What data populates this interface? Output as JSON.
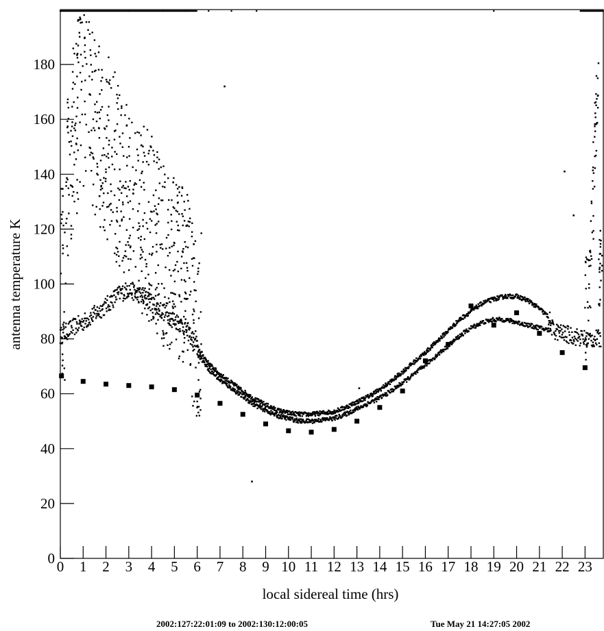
{
  "chart_data": {
    "type": "scatter",
    "xlabel": "local sidereal time (hrs)",
    "ylabel": "antenna temperature K",
    "xlim": [
      0,
      23.8
    ],
    "ylim": [
      0,
      200
    ],
    "x_ticks": [
      0,
      1,
      2,
      3,
      4,
      5,
      6,
      7,
      8,
      9,
      10,
      11,
      12,
      13,
      14,
      15,
      16,
      17,
      18,
      19,
      20,
      21,
      22,
      23
    ],
    "y_ticks": [
      0,
      20,
      40,
      60,
      80,
      100,
      120,
      140,
      160,
      180
    ],
    "grid": false,
    "series": [
      {
        "marker": "square-small",
        "upper_track": [
          [
            0.0,
            81
          ],
          [
            0.5,
            84
          ],
          [
            1.0,
            86
          ],
          [
            1.5,
            89
          ],
          [
            2.0,
            92
          ],
          [
            2.5,
            96
          ],
          [
            3.0,
            98
          ],
          [
            3.5,
            96
          ],
          [
            4.0,
            93
          ],
          [
            4.5,
            90
          ],
          [
            5.0,
            87
          ],
          [
            5.5,
            84
          ],
          [
            6.0,
            77
          ],
          [
            6.5,
            71
          ],
          [
            7.0,
            67
          ],
          [
            7.5,
            64
          ],
          [
            8.0,
            61
          ],
          [
            8.5,
            58
          ],
          [
            9.0,
            56
          ],
          [
            9.5,
            54
          ],
          [
            10.0,
            53
          ],
          [
            10.5,
            52.5
          ],
          [
            11.0,
            52.5
          ],
          [
            11.5,
            53
          ],
          [
            12.0,
            53.5
          ],
          [
            12.5,
            55
          ],
          [
            13.0,
            57
          ],
          [
            13.5,
            59
          ],
          [
            14.0,
            61.5
          ],
          [
            14.5,
            64.5
          ],
          [
            15.0,
            68
          ],
          [
            15.5,
            71.5
          ],
          [
            16.0,
            75
          ],
          [
            16.5,
            79
          ],
          [
            17.0,
            83
          ],
          [
            17.5,
            87
          ],
          [
            18.0,
            90
          ],
          [
            18.5,
            93
          ],
          [
            19.0,
            94.5
          ],
          [
            19.5,
            95.5
          ],
          [
            20.0,
            95.5
          ],
          [
            20.5,
            94
          ],
          [
            21.0,
            91
          ],
          [
            21.4,
            88
          ],
          [
            21.6,
            83
          ],
          [
            22.0,
            82
          ],
          [
            22.5,
            81
          ],
          [
            23.0,
            80
          ],
          [
            23.7,
            80
          ]
        ],
        "lower_track": [
          [
            6.0,
            75
          ],
          [
            6.5,
            69
          ],
          [
            7.0,
            65
          ],
          [
            7.5,
            62
          ],
          [
            8.0,
            59
          ],
          [
            8.5,
            56
          ],
          [
            9.0,
            54
          ],
          [
            9.5,
            52
          ],
          [
            10.0,
            51
          ],
          [
            10.5,
            50
          ],
          [
            11.0,
            50
          ],
          [
            11.5,
            50.5
          ],
          [
            12.0,
            51
          ],
          [
            12.5,
            52.5
          ],
          [
            13.0,
            54.5
          ],
          [
            13.5,
            56.5
          ],
          [
            14.0,
            58.5
          ],
          [
            14.5,
            61
          ],
          [
            15.0,
            64
          ],
          [
            15.5,
            67
          ],
          [
            16.0,
            70.5
          ],
          [
            16.5,
            74
          ],
          [
            17.0,
            77.5
          ],
          [
            17.5,
            81
          ],
          [
            18.0,
            84
          ],
          [
            18.5,
            86
          ],
          [
            19.0,
            87
          ],
          [
            19.5,
            87
          ],
          [
            20.0,
            86
          ],
          [
            20.5,
            85
          ],
          [
            21.0,
            84
          ],
          [
            21.5,
            83
          ]
        ],
        "scatter_band": [
          [
            0.2,
            120
          ],
          [
            0.5,
            150
          ],
          [
            1.0,
            170
          ],
          [
            1.5,
            160
          ],
          [
            2.0,
            150
          ],
          [
            2.5,
            140
          ],
          [
            3.0,
            130
          ],
          [
            3.5,
            125
          ],
          [
            4.0,
            120
          ],
          [
            4.5,
            110
          ],
          [
            5.0,
            105
          ],
          [
            5.5,
            100
          ],
          [
            6.0,
            85
          ],
          [
            23.1,
            90
          ],
          [
            23.3,
            120
          ],
          [
            23.5,
            160
          ],
          [
            23.6,
            180
          ]
        ],
        "saturated_x_ranges": [
          [
            0.0,
            3.0
          ],
          [
            3.0,
            6.0
          ],
          [
            22.8,
            23.8
          ]
        ]
      },
      {
        "marker": "square-large",
        "points": [
          [
            0.05,
            66.5
          ],
          [
            1.0,
            64.5
          ],
          [
            2.0,
            63.5
          ],
          [
            3.0,
            63
          ],
          [
            4.0,
            62.5
          ],
          [
            5.0,
            61.5
          ],
          [
            6.0,
            59.5
          ],
          [
            7.0,
            56.5
          ],
          [
            8.0,
            52.5
          ],
          [
            9.0,
            49
          ],
          [
            10.0,
            46.5
          ],
          [
            11.0,
            46
          ],
          [
            12.0,
            47
          ],
          [
            13.0,
            50
          ],
          [
            14.0,
            55
          ],
          [
            15.0,
            61
          ],
          [
            16.0,
            72
          ],
          [
            17.0,
            78
          ],
          [
            18.0,
            92
          ],
          [
            19.0,
            85
          ],
          [
            20.0,
            89.5
          ],
          [
            21.0,
            82
          ],
          [
            22.0,
            75
          ],
          [
            23.0,
            69.5
          ]
        ]
      }
    ],
    "annotations": [
      "2002:127:22:01:09 to 2002:130:12:00:05",
      "Tue May 21 14:27:05 2002"
    ]
  }
}
